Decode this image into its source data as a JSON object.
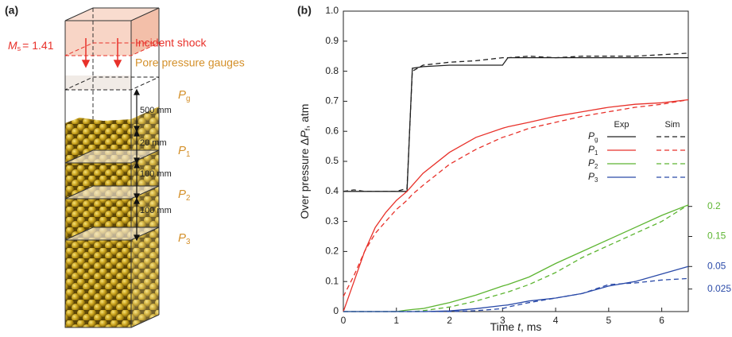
{
  "diagram": {
    "panel_label": "(a)",
    "mach": {
      "symbol": "M",
      "sub": "s",
      "value_text": "= 1.41"
    },
    "incident_shock": "Incident shock",
    "gauges_title": "Pore pressure gauges",
    "gauges": [
      {
        "symbol": "P",
        "sub": "g"
      },
      {
        "symbol": "P",
        "sub": "1"
      },
      {
        "symbol": "P",
        "sub": "2"
      },
      {
        "symbol": "P",
        "sub": "3"
      }
    ],
    "distances": [
      "500 mm",
      "20 mm",
      "100 mm",
      "100 mm"
    ]
  },
  "chart_data": {
    "type": "line",
    "panel_label": "(b)",
    "x_label": {
      "text": "Time ",
      "symbol": "t",
      "suffix": ", ms"
    },
    "y_label": {
      "text": "Over pressure Δ",
      "symbol": "P",
      "sub": "f",
      "suffix": ", atm"
    },
    "xlim": [
      0,
      6.5
    ],
    "xticks": [
      0,
      1,
      2,
      3,
      4,
      5,
      6
    ],
    "ylim": [
      0,
      1
    ],
    "yticks": [
      0,
      0.1,
      0.2,
      0.3,
      0.4,
      0.5,
      0.6,
      0.7,
      0.8,
      0.9,
      {
        "value": 1,
        "label": "1.0"
      }
    ],
    "y2lim": [
      0.025,
      0.525
    ],
    "y2ticks": [
      0.15,
      0.2
    ],
    "y2color": "#5db531",
    "y3lim": [
      0,
      0.3333
    ],
    "y3ticks": [
      0.025,
      0.05
    ],
    "y3color": "#2a4aa8",
    "legend": {
      "columns": [
        "Exp",
        "Sim"
      ]
    },
    "x": [
      0,
      0.2,
      0.4,
      0.6,
      0.8,
      1.0,
      1.2,
      1.3,
      1.5,
      2,
      2.5,
      3,
      3.1,
      3.5,
      4,
      4.5,
      5,
      5.5,
      6,
      6.5
    ],
    "series": [
      {
        "label": {
          "symbol": "P",
          "sub": "g"
        },
        "color": "#222222",
        "exp": [
          0.4,
          0.4,
          0.4,
          0.4,
          0.4,
          0.4,
          0.4,
          0.81,
          0.815,
          0.82,
          0.82,
          0.82,
          0.845,
          0.845,
          0.845,
          0.845,
          0.845,
          0.845,
          0.845,
          0.845
        ],
        "sim": [
          0.4,
          0.405,
          0.4,
          0.4,
          0.4,
          0.4,
          0.41,
          0.8,
          0.82,
          0.83,
          0.835,
          0.845,
          0.845,
          0.85,
          0.845,
          0.85,
          0.85,
          0.85,
          0.855,
          0.86
        ]
      },
      {
        "label": {
          "symbol": "P",
          "sub": "1"
        },
        "color": "#e8312a",
        "exp": [
          0,
          0.1,
          0.2,
          0.28,
          0.33,
          0.37,
          0.4,
          0.42,
          0.46,
          0.53,
          0.58,
          0.61,
          0.615,
          0.63,
          0.65,
          0.665,
          0.68,
          0.69,
          0.695,
          0.705
        ],
        "sim": [
          0.05,
          0.12,
          0.2,
          0.26,
          0.3,
          0.34,
          0.37,
          0.39,
          0.42,
          0.49,
          0.54,
          0.58,
          0.585,
          0.61,
          0.63,
          0.65,
          0.665,
          0.68,
          0.69,
          0.705
        ]
      },
      {
        "label": {
          "symbol": "P",
          "sub": "2"
        },
        "color": "#5db531",
        "axis": "y2",
        "exp": [
          0.025,
          0.025,
          0.025,
          0.025,
          0.025,
          0.025,
          0.0275,
          0.0285,
          0.03,
          0.04,
          0.0525,
          0.0675,
          0.07,
          0.0825,
          0.105,
          0.125,
          0.145,
          0.165,
          0.185,
          0.2025
        ],
        "sim": [
          0.025,
          0.025,
          0.025,
          0.025,
          0.025,
          0.025,
          0.025,
          0.025,
          0.0265,
          0.0325,
          0.0425,
          0.055,
          0.0575,
          0.07,
          0.09,
          0.115,
          0.135,
          0.155,
          0.175,
          0.2025
        ]
      },
      {
        "label": {
          "symbol": "P",
          "sub": "3"
        },
        "color": "#2a4aa8",
        "axis": "y3",
        "exp": [
          0,
          0,
          0,
          0,
          0,
          0,
          0,
          0,
          0,
          0.0007,
          0.0033,
          0.0067,
          0.0073,
          0.0117,
          0.015,
          0.02,
          0.0283,
          0.0333,
          0.0417,
          0.05
        ],
        "sim": [
          0,
          0,
          0,
          0,
          0,
          0,
          0,
          0,
          0,
          0,
          0.001,
          0.0033,
          0.005,
          0.01,
          0.015,
          0.02,
          0.03,
          0.0317,
          0.035,
          0.0367
        ]
      }
    ]
  }
}
